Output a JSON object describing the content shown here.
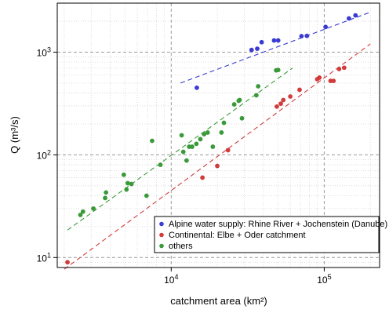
{
  "chart_data": {
    "type": "scatter",
    "title": "",
    "xlabel": "catchment area (km²)",
    "ylabel": "Q (m³/s)",
    "xscale": "log",
    "yscale": "log",
    "xlim": [
      1800,
      230000
    ],
    "ylim": [
      8,
      3000
    ],
    "x_ticks": [
      {
        "value": 10000,
        "label": "10^4"
      },
      {
        "value": 100000,
        "label": "10^5"
      }
    ],
    "y_ticks": [
      {
        "value": 10,
        "label": "10^1"
      },
      {
        "value": 100,
        "label": "10^2"
      },
      {
        "value": 1000,
        "label": "10^3"
      }
    ],
    "grid": true,
    "legend_position": "bottom-right",
    "series": [
      {
        "name": "Alpine water supply: Rhine River + Jochenstein (Danube)",
        "color": "#3b3bd4",
        "points": [
          [
            14700,
            450
          ],
          [
            33500,
            1050
          ],
          [
            36500,
            1080
          ],
          [
            39000,
            1250
          ],
          [
            47000,
            1300
          ],
          [
            50000,
            1300
          ],
          [
            71000,
            1430
          ],
          [
            77000,
            1440
          ],
          [
            102000,
            1760
          ],
          [
            145000,
            2130
          ],
          [
            160000,
            2280
          ]
        ],
        "fit": [
          [
            11500,
            500
          ],
          [
            200000,
            2450
          ]
        ]
      },
      {
        "name": "Continental: Elbe + Oder catchment",
        "color": "#d23b3b",
        "points": [
          [
            2100,
            9
          ],
          [
            16000,
            60
          ],
          [
            20000,
            78
          ],
          [
            23500,
            111
          ],
          [
            49000,
            295
          ],
          [
            52000,
            315
          ],
          [
            54000,
            342
          ],
          [
            60000,
            370
          ],
          [
            69000,
            430
          ],
          [
            90000,
            545
          ],
          [
            93000,
            565
          ],
          [
            110000,
            525
          ],
          [
            115000,
            525
          ],
          [
            125000,
            685
          ],
          [
            135000,
            705
          ]
        ],
        "fit": [
          [
            2000,
            7.7
          ],
          [
            200000,
            1200
          ]
        ]
      },
      {
        "name": "others",
        "color": "#3a9a3a",
        "points": [
          [
            2550,
            26
          ],
          [
            2650,
            28
          ],
          [
            3100,
            30
          ],
          [
            3700,
            38
          ],
          [
            3750,
            43
          ],
          [
            4900,
            64
          ],
          [
            5100,
            46
          ],
          [
            5200,
            53
          ],
          [
            5500,
            52
          ],
          [
            6900,
            40
          ],
          [
            7500,
            137
          ],
          [
            8500,
            80
          ],
          [
            11700,
            155
          ],
          [
            12000,
            107
          ],
          [
            12600,
            88
          ],
          [
            13100,
            120
          ],
          [
            13700,
            120
          ],
          [
            14600,
            128
          ],
          [
            15500,
            142
          ],
          [
            16400,
            159
          ],
          [
            17300,
            165
          ],
          [
            18700,
            120
          ],
          [
            21300,
            165
          ],
          [
            22100,
            205
          ],
          [
            25800,
            310
          ],
          [
            27600,
            336
          ],
          [
            28000,
            342
          ],
          [
            29000,
            227
          ],
          [
            36000,
            380
          ],
          [
            37000,
            465
          ],
          [
            48500,
            665
          ],
          [
            50000,
            670
          ]
        ],
        "fit": [
          [
            2100,
            18.5
          ],
          [
            62000,
            700
          ]
        ]
      }
    ]
  }
}
